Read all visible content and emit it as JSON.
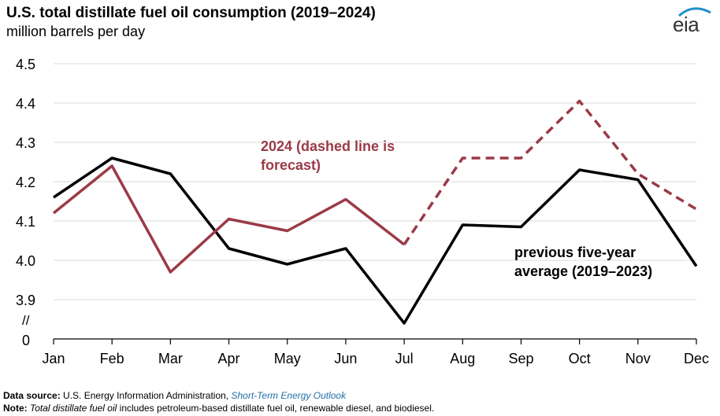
{
  "header": {
    "title": "U.S. total distillate fuel oil consumption (2019–2024)",
    "subtitle": "million barrels per day",
    "logo": "eia"
  },
  "chart_data": {
    "type": "line",
    "title": "U.S. total distillate fuel oil consumption (2019–2024)",
    "ylabel": "million barrels per day",
    "xlabel": "",
    "categories": [
      "Jan",
      "Feb",
      "Mar",
      "Apr",
      "May",
      "Jun",
      "Jul",
      "Aug",
      "Sep",
      "Oct",
      "Nov",
      "Dec"
    ],
    "ylim": [
      3.8,
      4.5
    ],
    "yticks": [
      "4.5",
      "4.4",
      "4.3",
      "4.2",
      "4.1",
      "4.0",
      "3.9"
    ],
    "y_axis_break": "//",
    "y_zero_label": "0",
    "grid": true,
    "series": [
      {
        "name": "previous five-year average (2019–2023)",
        "color": "#000000",
        "style": "solid",
        "values": [
          4.16,
          4.26,
          4.22,
          4.03,
          3.99,
          4.03,
          3.84,
          4.09,
          4.085,
          4.23,
          4.205,
          3.985
        ]
      },
      {
        "name": "2024 (dashed line is forecast)",
        "color": "#9b3a48",
        "style": "solid-then-dashed",
        "forecast_start": "Jul",
        "values": [
          4.12,
          4.24,
          3.97,
          4.105,
          4.075,
          4.155,
          4.04,
          4.26,
          4.26,
          4.405,
          4.22,
          4.13
        ]
      }
    ],
    "annotations": {
      "series_2024_label_line1": "2024 (dashed line is",
      "series_2024_label_line2": "forecast)",
      "avg_label_line1": "previous five-year",
      "avg_label_line2": "average (2019–2023)"
    }
  },
  "footer": {
    "source_label": "Data source:",
    "source_text": "U.S. Energy Information Administration,",
    "source_link": "Short-Term Energy Outlook",
    "note_label": "Note:",
    "note_italic": "Total distillate fuel oil",
    "note_text": "includes petroleum-based distillate fuel oil, renewable diesel, and biodiesel."
  }
}
